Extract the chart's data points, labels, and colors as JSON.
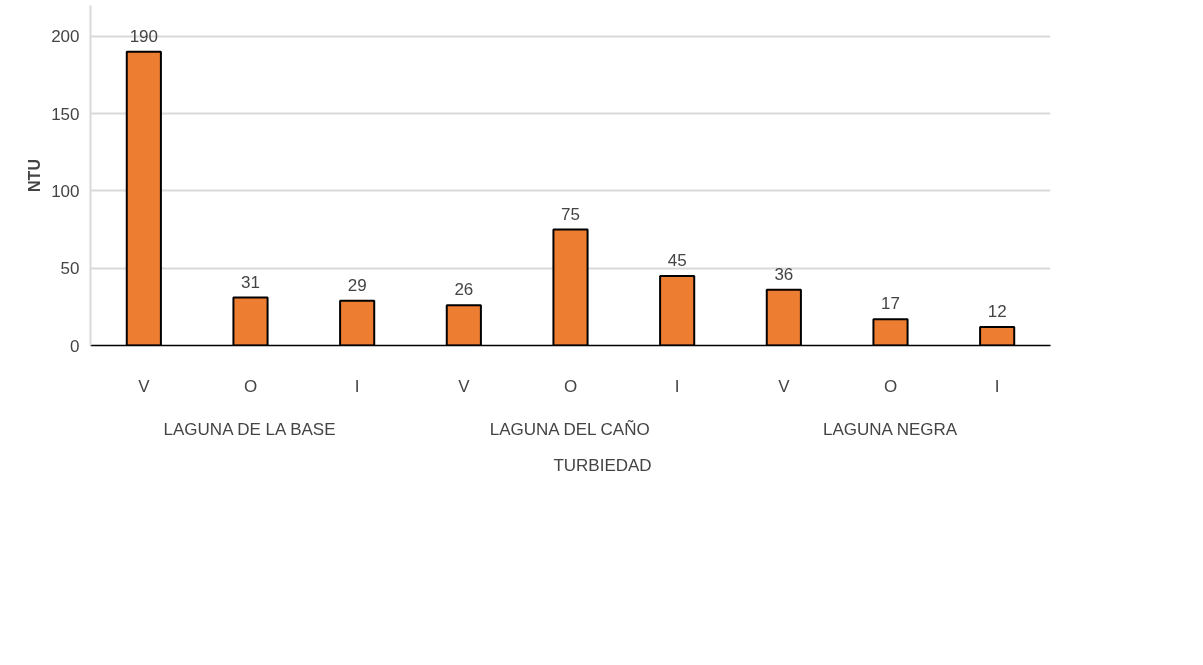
{
  "chart_data": {
    "type": "bar",
    "ylabel": "NTU",
    "categories": [
      "V",
      "O",
      "I",
      "V",
      "O",
      "I",
      "V",
      "O",
      "I"
    ],
    "series": [
      {
        "name": "TURBIEDAD",
        "color": "#ed7d31",
        "values": [
          190,
          31,
          29,
          26,
          75,
          45,
          36,
          17,
          12
        ]
      }
    ],
    "annotations": [
      "LAGUNA DE LA BASE",
      "LAGUNA DEL CAÑO",
      "LAGUNA NEGRA"
    ],
    "ylim": [
      0,
      220
    ],
    "yticks": [
      0,
      50,
      100,
      150,
      200
    ],
    "grid": "y",
    "legend": "bottom",
    "data_labels": true
  }
}
